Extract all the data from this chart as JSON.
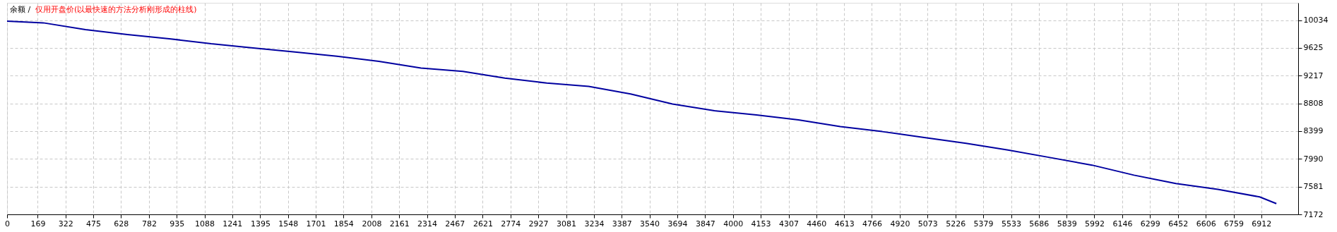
{
  "chart_data": {
    "type": "line",
    "title": "余额 /",
    "subtitle": "仅用开盘价(以最快速的方法分析刚形成的柱线)",
    "x": [
      0,
      200,
      432,
      663,
      894,
      1125,
      1356,
      1587,
      1818,
      2049,
      2281,
      2512,
      2743,
      2974,
      3205,
      3436,
      3667,
      3898,
      4130,
      4361,
      4592,
      4823,
      5054,
      5285,
      5516,
      5747,
      5979,
      6210,
      6441,
      6672,
      6903,
      6995
    ],
    "series": [
      {
        "color": "#0000a0",
        "values": [
          10020,
          9995,
          9896,
          9822,
          9761,
          9686,
          9625,
          9564,
          9502,
          9428,
          9329,
          9280,
          9181,
          9107,
          9058,
          8947,
          8798,
          8700,
          8638,
          8564,
          8465,
          8392,
          8305,
          8219,
          8120,
          8010,
          7898,
          7750,
          7627,
          7540,
          7429,
          7331
        ]
      }
    ],
    "xlim": [
      0,
      7115
    ],
    "ylim": [
      7172,
      10290
    ],
    "xticks": [
      0,
      169,
      322,
      475,
      628,
      782,
      935,
      1088,
      1241,
      1395,
      1548,
      1701,
      1854,
      2008,
      2161,
      2314,
      2467,
      2621,
      2774,
      2927,
      3081,
      3234,
      3387,
      3540,
      3694,
      3847,
      4000,
      4153,
      4307,
      4460,
      4613,
      4766,
      4920,
      5073,
      5226,
      5379,
      5533,
      5686,
      5839,
      5992,
      6146,
      6299,
      6452,
      6606,
      6759,
      6912
    ],
    "yticks": [
      7172,
      7581,
      7990,
      8399,
      8808,
      9217,
      9625,
      10034
    ],
    "grid": true,
    "line_style": "solid",
    "marker": "none"
  }
}
